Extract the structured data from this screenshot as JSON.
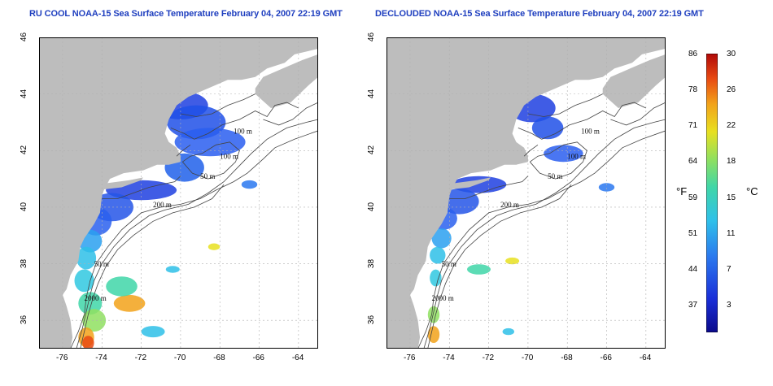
{
  "left_panel": {
    "title": "RU COOL NOAA-15 Sea Surface Temperature February 04, 2007 22:19 GMT",
    "x_ticks": [
      "-76",
      "-74",
      "-72",
      "-70",
      "-68",
      "-66",
      "-64"
    ],
    "y_ticks": [
      "46",
      "44",
      "42",
      "40",
      "38",
      "36"
    ],
    "contour_labels": [
      "100 m",
      "100 m",
      "50 m",
      "200 m",
      "50 m",
      "2000 m"
    ]
  },
  "right_panel": {
    "title": "DECLOUDED NOAA-15 Sea Surface Temperature February 04, 2007 22:19 GMT",
    "x_ticks": [
      "-76",
      "-74",
      "-72",
      "-70",
      "-68",
      "-66",
      "-64"
    ],
    "y_ticks": [
      "46",
      "44",
      "42",
      "40",
      "38",
      "36"
    ],
    "contour_labels": [
      "100 m",
      "100 m",
      "50 m",
      "200 m",
      "50 m",
      "2000 m"
    ]
  },
  "colorbar": {
    "fahrenheit_label": "°F",
    "celsius_label": "°C",
    "fahrenheit_ticks": [
      "86",
      "78",
      "71",
      "64",
      "59",
      "51",
      "44",
      "37"
    ],
    "celsius_ticks": [
      "30",
      "26",
      "22",
      "18",
      "15",
      "11",
      "7",
      "3"
    ]
  },
  "map_extent": {
    "lon_range": [
      -77.2,
      -63.0
    ],
    "lat_range": [
      35.0,
      46.0
    ]
  },
  "colors": {
    "land": "#bdbdbd",
    "ocean": "#ffffff",
    "grid": "#b0b0b0",
    "contour": "#444444",
    "title": "#1f3fbf",
    "cold": "#1f3fe0",
    "warm": "#e03a10"
  }
}
